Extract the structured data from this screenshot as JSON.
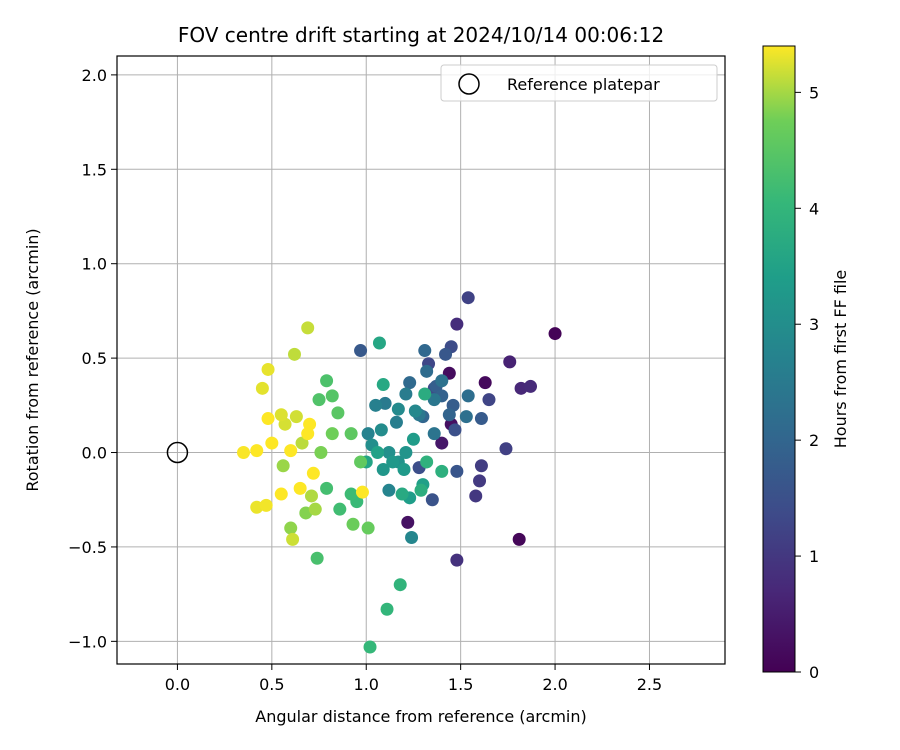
{
  "chart_data": {
    "type": "scatter",
    "title": "FOV centre drift starting at 2024/10/14 00:06:12",
    "xlabel": "Angular distance from reference (arcmin)",
    "ylabel": "Rotation from reference (arcmin)",
    "xlim": [
      -0.32,
      2.9
    ],
    "ylim": [
      -1.12,
      2.1
    ],
    "xticks": [
      "0.0",
      "0.5",
      "1.0",
      "1.5",
      "2.0",
      "2.5"
    ],
    "xtick_values": [
      0.0,
      0.5,
      1.0,
      1.5,
      2.0,
      2.5
    ],
    "yticks": [
      "2.0",
      "1.5",
      "1.0",
      "0.5",
      "0.0",
      "−0.5",
      "−1.0"
    ],
    "ytick_values": [
      2.0,
      1.5,
      1.0,
      0.5,
      0.0,
      -0.5,
      -1.0
    ],
    "grid": true,
    "legend": {
      "position": "top-right",
      "label": "Reference platepar"
    },
    "reference_point": {
      "x": 0.0,
      "y": 0.0
    },
    "colorbar": {
      "label": "Hours from first FF file",
      "colormap": "viridis",
      "range": [
        0,
        5.4
      ],
      "ticks": [
        "0",
        "1",
        "2",
        "3",
        "4",
        "5"
      ],
      "tick_values": [
        0,
        1,
        2,
        3,
        4,
        5
      ]
    },
    "points": [
      [
        2.0,
        0.63,
        0.05
      ],
      [
        1.81,
        -0.46,
        0.1
      ],
      [
        1.63,
        0.37,
        0.15
      ],
      [
        1.44,
        0.42,
        0.2
      ],
      [
        1.45,
        0.15,
        0.25
      ],
      [
        1.22,
        -0.37,
        0.3
      ],
      [
        1.4,
        0.05,
        0.4
      ],
      [
        1.76,
        0.48,
        0.6
      ],
      [
        1.82,
        0.34,
        0.7
      ],
      [
        1.87,
        0.35,
        0.75
      ],
      [
        1.48,
        0.68,
        0.8
      ],
      [
        1.48,
        -0.57,
        0.9
      ],
      [
        1.58,
        -0.23,
        1.0
      ],
      [
        1.6,
        -0.15,
        1.05
      ],
      [
        1.61,
        -0.07,
        1.1
      ],
      [
        1.74,
        0.02,
        1.15
      ],
      [
        1.54,
        0.82,
        1.2
      ],
      [
        1.65,
        0.28,
        1.25
      ],
      [
        1.33,
        0.47,
        1.3
      ],
      [
        1.36,
        0.34,
        1.35
      ],
      [
        1.45,
        0.56,
        1.4
      ],
      [
        1.28,
        -0.08,
        1.45
      ],
      [
        1.47,
        0.12,
        1.5
      ],
      [
        1.35,
        -0.25,
        1.55
      ],
      [
        1.48,
        -0.1,
        1.6
      ],
      [
        1.42,
        0.52,
        1.65
      ],
      [
        0.97,
        0.54,
        1.7
      ],
      [
        1.61,
        0.18,
        1.75
      ],
      [
        1.46,
        0.25,
        1.8
      ],
      [
        1.37,
        0.35,
        1.85
      ],
      [
        1.4,
        0.3,
        1.9
      ],
      [
        1.44,
        0.2,
        1.95
      ],
      [
        1.3,
        0.19,
        2.0
      ],
      [
        1.31,
        0.54,
        2.05
      ],
      [
        1.23,
        0.37,
        2.1
      ],
      [
        1.32,
        0.43,
        2.15
      ],
      [
        1.54,
        0.3,
        2.2
      ],
      [
        1.53,
        0.19,
        2.25
      ],
      [
        1.4,
        0.38,
        2.3
      ],
      [
        1.36,
        0.1,
        2.35
      ],
      [
        1.36,
        0.28,
        2.4
      ],
      [
        1.28,
        0.2,
        2.45
      ],
      [
        1.1,
        0.26,
        2.5
      ],
      [
        1.21,
        0.31,
        2.55
      ],
      [
        1.16,
        0.16,
        2.6
      ],
      [
        1.05,
        0.25,
        2.65
      ],
      [
        1.01,
        0.1,
        2.7
      ],
      [
        1.12,
        -0.2,
        2.75
      ],
      [
        1.24,
        -0.45,
        2.8
      ],
      [
        1.26,
        0.22,
        2.85
      ],
      [
        1.17,
        0.23,
        2.9
      ],
      [
        1.08,
        0.12,
        2.95
      ],
      [
        1.03,
        0.04,
        3.0
      ],
      [
        1.12,
        0.0,
        3.05
      ],
      [
        1.17,
        -0.05,
        3.1
      ],
      [
        1.21,
        0.0,
        3.15
      ],
      [
        1.09,
        -0.09,
        3.2
      ],
      [
        1.14,
        -0.05,
        3.25
      ],
      [
        1.2,
        -0.09,
        3.3
      ],
      [
        1.25,
        0.07,
        3.35
      ],
      [
        1.23,
        -0.24,
        3.4
      ],
      [
        1.3,
        -0.17,
        3.45
      ],
      [
        1.06,
        0.0,
        3.5
      ],
      [
        1.0,
        -0.05,
        3.55
      ],
      [
        1.07,
        0.58,
        3.6
      ],
      [
        1.09,
        0.36,
        3.65
      ],
      [
        1.19,
        -0.22,
        3.7
      ],
      [
        1.31,
        0.31,
        3.75
      ],
      [
        1.29,
        -0.2,
        3.8
      ],
      [
        1.4,
        -0.1,
        3.85
      ],
      [
        1.32,
        -0.05,
        3.9
      ],
      [
        1.18,
        -0.7,
        3.95
      ],
      [
        1.11,
        -0.83,
        4.0
      ],
      [
        1.02,
        -1.03,
        4.05
      ],
      [
        0.95,
        -0.26,
        4.1
      ],
      [
        0.92,
        -0.22,
        4.15
      ],
      [
        0.86,
        -0.3,
        4.2
      ],
      [
        0.79,
        -0.19,
        4.25
      ],
      [
        0.74,
        -0.56,
        4.3
      ],
      [
        0.79,
        0.38,
        4.35
      ],
      [
        0.75,
        0.28,
        4.4
      ],
      [
        0.82,
        0.3,
        4.45
      ],
      [
        0.85,
        0.21,
        4.5
      ],
      [
        0.92,
        0.1,
        4.55
      ],
      [
        0.97,
        -0.05,
        4.6
      ],
      [
        1.01,
        -0.4,
        4.65
      ],
      [
        0.93,
        -0.38,
        4.7
      ],
      [
        0.82,
        0.1,
        4.75
      ],
      [
        0.76,
        0.0,
        4.8
      ],
      [
        0.68,
        -0.32,
        4.85
      ],
      [
        0.6,
        -0.4,
        4.9
      ],
      [
        0.56,
        -0.07,
        4.95
      ],
      [
        0.73,
        -0.3,
        5.0
      ],
      [
        0.71,
        -0.23,
        5.05
      ],
      [
        0.66,
        0.05,
        5.1
      ],
      [
        0.62,
        0.52,
        5.12
      ],
      [
        0.69,
        0.66,
        5.15
      ],
      [
        0.61,
        -0.46,
        5.18
      ],
      [
        0.63,
        0.19,
        5.2
      ],
      [
        0.57,
        0.15,
        5.22
      ],
      [
        0.55,
        0.2,
        5.25
      ],
      [
        0.45,
        0.34,
        5.28
      ],
      [
        0.48,
        0.44,
        5.3
      ],
      [
        0.42,
        -0.29,
        5.32
      ],
      [
        0.47,
        -0.28,
        5.35
      ],
      [
        0.35,
        0.0,
        5.38
      ],
      [
        0.5,
        0.05,
        5.4
      ],
      [
        0.55,
        -0.22,
        5.42
      ],
      [
        0.42,
        0.01,
        5.45
      ],
      [
        0.48,
        0.18,
        5.45
      ],
      [
        0.6,
        0.01,
        5.45
      ],
      [
        0.7,
        0.15,
        5.48
      ],
      [
        0.98,
        -0.21,
        5.5
      ],
      [
        0.72,
        -0.11,
        5.5
      ],
      [
        0.69,
        0.1,
        5.5
      ],
      [
        0.65,
        -0.19,
        5.5
      ]
    ]
  }
}
